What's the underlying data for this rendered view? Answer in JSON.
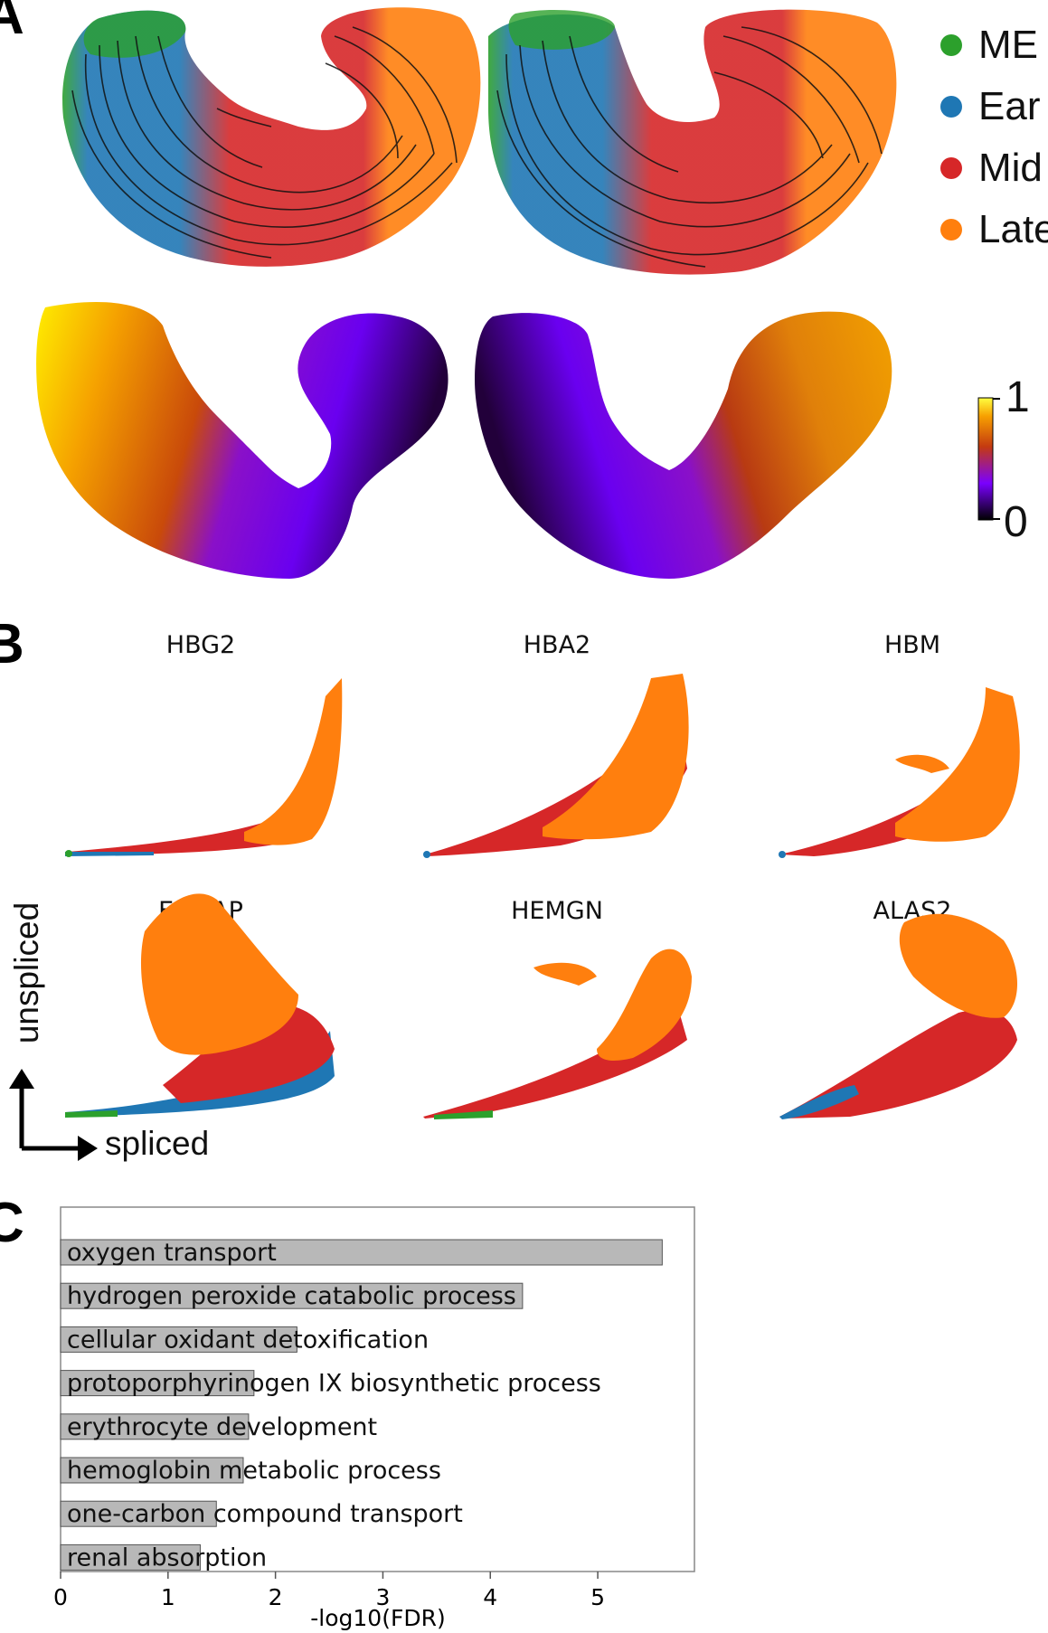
{
  "panel_letters": {
    "a": "A",
    "b": "B",
    "c": "C"
  },
  "panel_a": {
    "legend": [
      {
        "label": "ME",
        "color": "#2ca02c"
      },
      {
        "label": "Ear",
        "color": "#1f77b4"
      },
      {
        "label": "Mid",
        "color": "#d62728"
      },
      {
        "label": "Late",
        "color": "#ff7f0e"
      }
    ],
    "colorbar": {
      "max_label": "1",
      "min_label": "0",
      "colormap": "gnuplot"
    }
  },
  "panel_b": {
    "genes": [
      "HBG2",
      "HBA2",
      "HBM",
      "ERMAP",
      "HEMGN",
      "ALAS2"
    ],
    "y_axis_label": "unspliced",
    "x_axis_label": "spliced"
  },
  "chart_data": {
    "type": "bar",
    "orientation": "horizontal",
    "categories": [
      "oxygen transport",
      "hydrogen peroxide catabolic process",
      "cellular oxidant detoxification",
      "protoporphyrinogen IX biosynthetic process",
      "erythrocyte development",
      "hemoglobin metabolic process",
      "one-carbon compound transport",
      "renal absorption"
    ],
    "values": [
      5.6,
      4.3,
      2.2,
      1.8,
      1.75,
      1.7,
      1.45,
      1.3
    ],
    "xlabel": "-log10(FDR)",
    "xticks": [
      "0",
      "1",
      "2",
      "3",
      "4",
      "5"
    ],
    "xlim": [
      0,
      5.9
    ],
    "bar_color": "#b8b8b8",
    "grid": false
  }
}
